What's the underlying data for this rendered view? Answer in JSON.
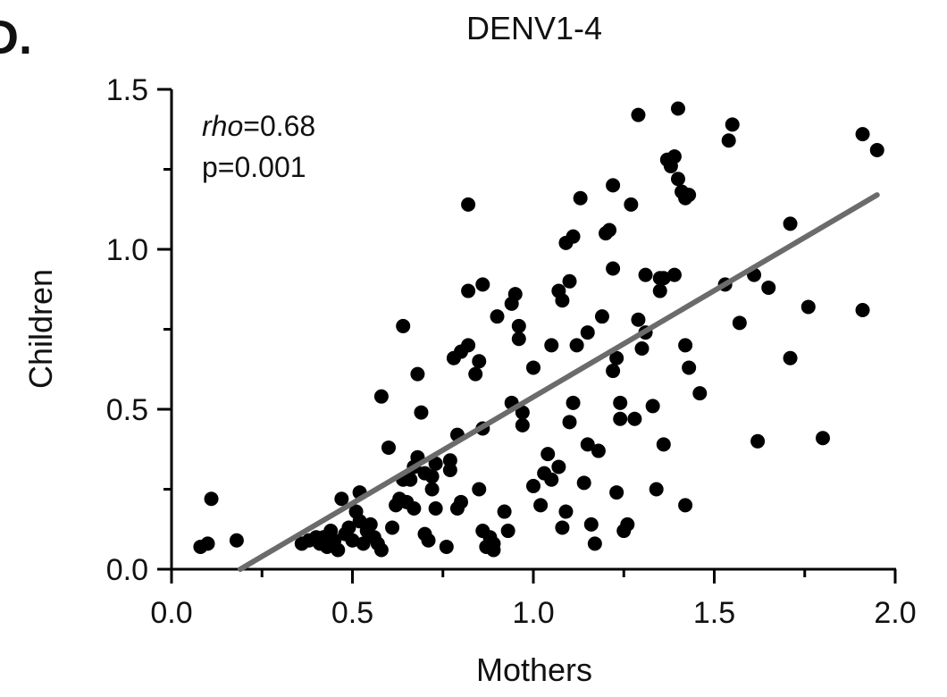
{
  "panel_label": "D.",
  "chart_data": {
    "type": "scatter",
    "title": "DENV1-4",
    "xlabel": "Mothers",
    "ylabel": "Children",
    "xlim": [
      0.0,
      2.0
    ],
    "ylim": [
      0.0,
      1.5
    ],
    "xticks": [
      0.0,
      0.5,
      1.0,
      1.5,
      2.0
    ],
    "yticks": [
      0.0,
      0.5,
      1.0,
      1.5
    ],
    "xtick_labels": [
      "0.0",
      "0.5",
      "1.0",
      "1.5",
      "2.0"
    ],
    "ytick_labels": [
      "0.0",
      "0.5",
      "1.0",
      "1.5"
    ],
    "grid": false,
    "colors": {
      "points": "#000000",
      "trend_line": "#6b6b6b"
    },
    "annotation": {
      "rho_label": "rho",
      "rho_value": "=0.68",
      "p_text": "p=0.001",
      "position": "top-left"
    },
    "trend_line": {
      "x": [
        0.19,
        1.95
      ],
      "y": [
        0.0,
        1.17
      ]
    },
    "points": [
      [
        0.08,
        0.07
      ],
      [
        0.1,
        0.08
      ],
      [
        0.11,
        0.22
      ],
      [
        0.18,
        0.09
      ],
      [
        0.36,
        0.08
      ],
      [
        0.38,
        0.09
      ],
      [
        0.4,
        0.1
      ],
      [
        0.41,
        0.08
      ],
      [
        0.42,
        0.1
      ],
      [
        0.43,
        0.07
      ],
      [
        0.44,
        0.12
      ],
      [
        0.45,
        0.09
      ],
      [
        0.46,
        0.06
      ],
      [
        0.47,
        0.22
      ],
      [
        0.48,
        0.11
      ],
      [
        0.49,
        0.13
      ],
      [
        0.5,
        0.09
      ],
      [
        0.51,
        0.18
      ],
      [
        0.52,
        0.24
      ],
      [
        0.52,
        0.15
      ],
      [
        0.53,
        0.08
      ],
      [
        0.54,
        0.12
      ],
      [
        0.55,
        0.14
      ],
      [
        0.56,
        0.1
      ],
      [
        0.57,
        0.08
      ],
      [
        0.58,
        0.06
      ],
      [
        0.58,
        0.54
      ],
      [
        0.6,
        0.38
      ],
      [
        0.61,
        0.13
      ],
      [
        0.62,
        0.2
      ],
      [
        0.63,
        0.22
      ],
      [
        0.64,
        0.28
      ],
      [
        0.64,
        0.76
      ],
      [
        0.65,
        0.21
      ],
      [
        0.66,
        0.28
      ],
      [
        0.67,
        0.32
      ],
      [
        0.67,
        0.19
      ],
      [
        0.68,
        0.35
      ],
      [
        0.68,
        0.61
      ],
      [
        0.69,
        0.49
      ],
      [
        0.7,
        0.3
      ],
      [
        0.7,
        0.11
      ],
      [
        0.71,
        0.09
      ],
      [
        0.72,
        0.25
      ],
      [
        0.72,
        0.29
      ],
      [
        0.73,
        0.33
      ],
      [
        0.73,
        0.19
      ],
      [
        0.76,
        0.07
      ],
      [
        0.77,
        0.31
      ],
      [
        0.77,
        0.34
      ],
      [
        0.78,
        0.66
      ],
      [
        0.79,
        0.42
      ],
      [
        0.79,
        0.19
      ],
      [
        0.8,
        0.21
      ],
      [
        0.8,
        0.68
      ],
      [
        0.82,
        0.7
      ],
      [
        0.82,
        1.14
      ],
      [
        0.82,
        0.87
      ],
      [
        0.84,
        0.61
      ],
      [
        0.85,
        0.65
      ],
      [
        0.85,
        0.25
      ],
      [
        0.86,
        0.12
      ],
      [
        0.86,
        0.89
      ],
      [
        0.86,
        0.44
      ],
      [
        0.87,
        0.07
      ],
      [
        0.88,
        0.1
      ],
      [
        0.89,
        0.08
      ],
      [
        0.89,
        0.06
      ],
      [
        0.9,
        0.79
      ],
      [
        0.92,
        0.18
      ],
      [
        0.93,
        0.12
      ],
      [
        0.94,
        0.83
      ],
      [
        0.94,
        0.52
      ],
      [
        0.95,
        0.86
      ],
      [
        0.96,
        0.76
      ],
      [
        0.96,
        0.72
      ],
      [
        0.97,
        0.49
      ],
      [
        0.97,
        0.45
      ],
      [
        1.0,
        0.63
      ],
      [
        1.0,
        0.26
      ],
      [
        1.02,
        0.2
      ],
      [
        1.03,
        0.3
      ],
      [
        1.04,
        0.36
      ],
      [
        1.05,
        0.7
      ],
      [
        1.05,
        0.28
      ],
      [
        1.07,
        0.32
      ],
      [
        1.07,
        0.87
      ],
      [
        1.08,
        0.13
      ],
      [
        1.08,
        0.84
      ],
      [
        1.09,
        1.02
      ],
      [
        1.09,
        0.18
      ],
      [
        1.1,
        0.9
      ],
      [
        1.1,
        0.46
      ],
      [
        1.11,
        0.52
      ],
      [
        1.11,
        1.04
      ],
      [
        1.12,
        0.7
      ],
      [
        1.13,
        1.16
      ],
      [
        1.14,
        0.27
      ],
      [
        1.15,
        0.74
      ],
      [
        1.15,
        0.39
      ],
      [
        1.16,
        0.14
      ],
      [
        1.17,
        0.08
      ],
      [
        1.18,
        0.37
      ],
      [
        1.19,
        0.79
      ],
      [
        1.2,
        1.05
      ],
      [
        1.21,
        1.06
      ],
      [
        1.22,
        0.94
      ],
      [
        1.22,
        0.62
      ],
      [
        1.22,
        1.2
      ],
      [
        1.23,
        0.66
      ],
      [
        1.23,
        0.24
      ],
      [
        1.24,
        0.52
      ],
      [
        1.24,
        0.47
      ],
      [
        1.25,
        0.12
      ],
      [
        1.26,
        0.14
      ],
      [
        1.27,
        1.14
      ],
      [
        1.28,
        0.47
      ],
      [
        1.29,
        1.42
      ],
      [
        1.29,
        0.78
      ],
      [
        1.3,
        0.69
      ],
      [
        1.31,
        0.74
      ],
      [
        1.31,
        0.92
      ],
      [
        1.33,
        0.51
      ],
      [
        1.34,
        0.25
      ],
      [
        1.35,
        0.91
      ],
      [
        1.35,
        0.87
      ],
      [
        1.36,
        0.39
      ],
      [
        1.36,
        0.91
      ],
      [
        1.37,
        1.28
      ],
      [
        1.38,
        1.26
      ],
      [
        1.39,
        0.92
      ],
      [
        1.39,
        1.29
      ],
      [
        1.4,
        1.22
      ],
      [
        1.4,
        1.44
      ],
      [
        1.41,
        1.18
      ],
      [
        1.42,
        1.16
      ],
      [
        1.42,
        0.7
      ],
      [
        1.42,
        0.2
      ],
      [
        1.43,
        0.63
      ],
      [
        1.43,
        1.17
      ],
      [
        1.46,
        0.55
      ],
      [
        1.53,
        0.89
      ],
      [
        1.54,
        1.34
      ],
      [
        1.55,
        1.39
      ],
      [
        1.57,
        0.77
      ],
      [
        1.61,
        0.92
      ],
      [
        1.62,
        0.4
      ],
      [
        1.65,
        0.88
      ],
      [
        1.71,
        0.66
      ],
      [
        1.71,
        1.08
      ],
      [
        1.76,
        0.82
      ],
      [
        1.8,
        0.41
      ],
      [
        1.91,
        1.36
      ],
      [
        1.91,
        0.81
      ],
      [
        1.95,
        1.31
      ]
    ]
  }
}
